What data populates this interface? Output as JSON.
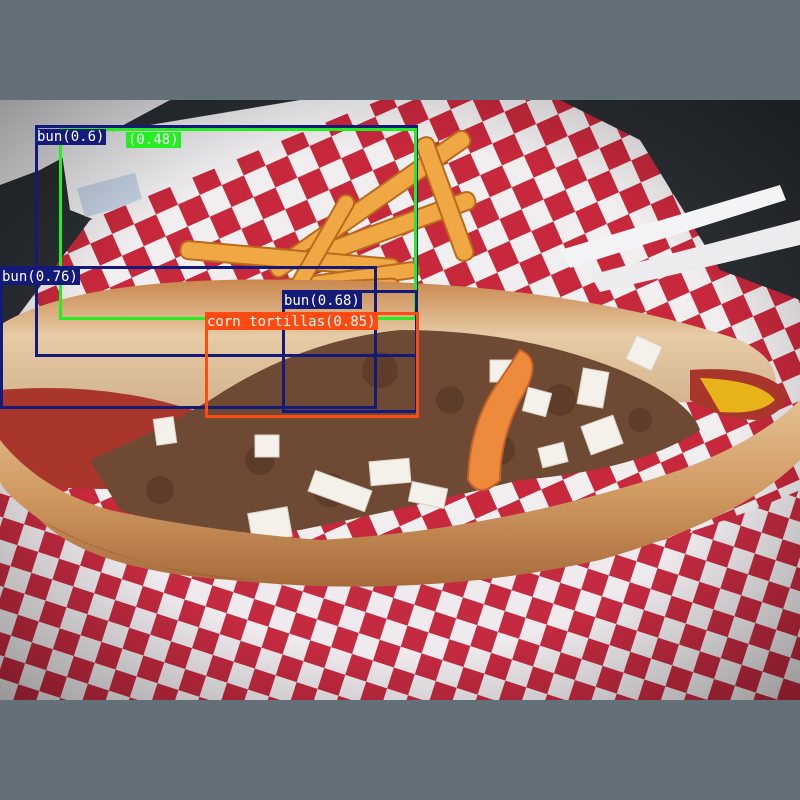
{
  "image": {
    "subject": "chili-hot-dog-with-fries-in-checkered-basket",
    "colors": {
      "background": "#647077",
      "checker_red": "#c8283c",
      "checker_white": "#f1eef0",
      "bun": "#c98a55",
      "chili": "#6e4a34"
    }
  },
  "detections": [
    {
      "id": "det-bun-060",
      "label": "bun(0.6)",
      "color": "#141a7a"
    },
    {
      "id": "det-unnamed-048",
      "label": "(0.48)",
      "color": "#22ee22"
    },
    {
      "id": "det-bun-076",
      "label": "bun(0.76)",
      "color": "#141a7a"
    },
    {
      "id": "det-bun-068",
      "label": "bun(0.68)",
      "color": "#141a7a"
    },
    {
      "id": "det-corn-tortillas-085",
      "label": "corn tortillas(0.85)",
      "color": "#ff4a12"
    }
  ]
}
